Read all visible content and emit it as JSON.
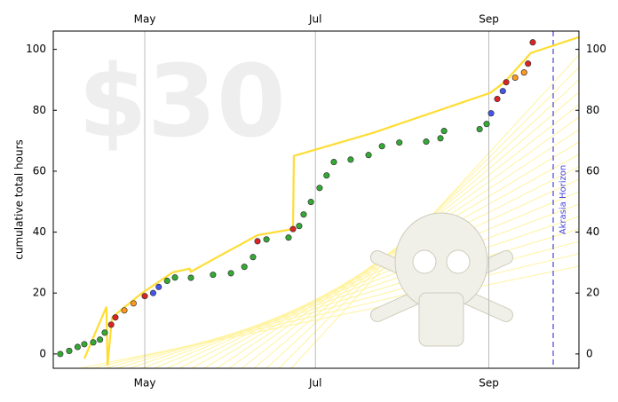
{
  "chart_data": {
    "type": "line",
    "ylabel": "cumulative total hours",
    "watermark": "$30",
    "horizon": {
      "label": "Akrasia Horizon",
      "x": 267,
      "color": "#4444dd"
    },
    "xlim": [
      88.3,
      276.2
    ],
    "ylim": [
      -4.7,
      106
    ],
    "xticks": [
      {
        "value": 121,
        "label": "May"
      },
      {
        "value": 182,
        "label": "Jul"
      },
      {
        "value": 244,
        "label": "Sep"
      }
    ],
    "yticks": [
      0,
      20,
      40,
      60,
      80,
      100
    ],
    "grid": true,
    "series": [
      {
        "color": "#ffdd33",
        "x": [
          99.4,
          107.3,
          107.7,
          109.3,
          120,
          131,
          137,
          137.5,
          145.4,
          161.3,
          174,
          174.3,
          202.6,
          244.5,
          249.6,
          259,
          276.2
        ],
        "values": [
          -1.5,
          15.5,
          -3.8,
          12,
          20,
          26.8,
          28,
          27,
          31,
          39,
          41,
          65,
          72.6,
          85.7,
          89.2,
          98.8,
          104
        ]
      },
      {
        "x": [
          90.8,
          94,
          97,
          99.4,
          102.6,
          105,
          106.7,
          109,
          110.5,
          113.7,
          117,
          121,
          124,
          126,
          129,
          131.8,
          137.5,
          145.4,
          151.8,
          156.6,
          159.7,
          161.3,
          164.5,
          172.4,
          174,
          176.2,
          177.8,
          180.4,
          183.5,
          186,
          188.6,
          194.6,
          201,
          205.8,
          212,
          221.6,
          226.7,
          228,
          240.7,
          243.2,
          244.8,
          247,
          249,
          250.2,
          253.4,
          256.6,
          258,
          259.7
        ],
        "values": [
          0,
          1,
          2.3,
          3.2,
          3.8,
          4.7,
          7,
          9.6,
          12,
          14.3,
          16.6,
          19,
          20,
          22,
          24,
          25.1,
          25,
          26,
          26.5,
          28.6,
          31.8,
          37,
          37.6,
          38.2,
          41,
          42,
          45.8,
          49.9,
          54.5,
          58.6,
          63,
          63.8,
          65.3,
          68.2,
          69.4,
          69.7,
          70.8,
          73.2,
          73.8,
          75.5,
          79,
          83.7,
          86.3,
          89.2,
          90.7,
          92.4,
          95.3,
          102.3
        ],
        "colors": [
          "#33aa33",
          "#33aa33",
          "#33aa33",
          "#33aa33",
          "#33aa33",
          "#33aa33",
          "#33aa33",
          "#dd2222",
          "#dd2222",
          "#ff9922",
          "#ff9922",
          "#dd2222",
          "#4455ee",
          "#4455ee",
          "#33aa33",
          "#33aa33",
          "#33aa33",
          "#33aa33",
          "#33aa33",
          "#33aa33",
          "#33aa33",
          "#dd2222",
          "#33aa33",
          "#33aa33",
          "#dd2222",
          "#33aa33",
          "#33aa33",
          "#33aa33",
          "#33aa33",
          "#33aa33",
          "#33aa33",
          "#33aa33",
          "#33aa33",
          "#33aa33",
          "#33aa33",
          "#33aa33",
          "#33aa33",
          "#33aa33",
          "#33aa33",
          "#33aa33",
          "#4455ee",
          "#dd2222",
          "#4455ee",
          "#dd2222",
          "#ff9922",
          "#ff9922",
          "#dd2222",
          "#dd2222"
        ]
      }
    ]
  }
}
